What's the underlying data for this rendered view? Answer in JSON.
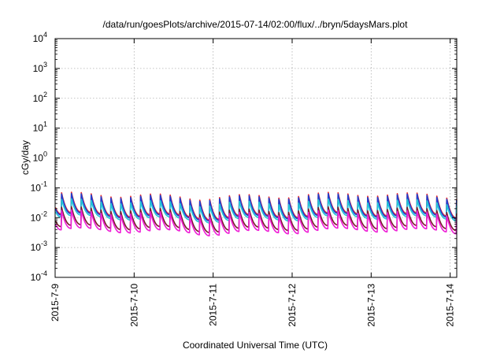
{
  "chart_data": {
    "type": "line",
    "title": "/data/run/goesPlots/archive/2015-07-14/02:00/flux/../bryn/5daysMars.plot",
    "xlabel": "Coordinated Universal Time (UTC)",
    "ylabel": "cGy/day",
    "y_scale": "log",
    "ylim_exponent": [
      -4,
      4
    ],
    "y_ticks": [
      {
        "base": "10",
        "exp": "-4"
      },
      {
        "base": "10",
        "exp": "-3"
      },
      {
        "base": "10",
        "exp": "-2"
      },
      {
        "base": "10",
        "exp": "-1"
      },
      {
        "base": "10",
        "exp": "0"
      },
      {
        "base": "10",
        "exp": "1"
      },
      {
        "base": "10",
        "exp": "2"
      },
      {
        "base": "10",
        "exp": "3"
      },
      {
        "base": "10",
        "exp": "4"
      }
    ],
    "x_start": "2015-07-09",
    "x_end": "2015-07-14 02:00",
    "x_ticks": [
      "2015-7-9",
      "2015-7-10",
      "2015-7-11",
      "2015-7-12",
      "2015-7-13",
      "2015-7-14"
    ],
    "grid": true,
    "legend": "none",
    "periodic_pattern": {
      "period_hours": 3,
      "description": "sawtooth: sharp spike every 3 hours followed by decay"
    },
    "series": [
      {
        "color": "#e8262a",
        "peak": 0.055,
        "floor": 0.012
      },
      {
        "color": "#1f3fcf",
        "peak": 0.05,
        "floor": 0.011
      },
      {
        "color": "#22c5d6",
        "peak": 0.033,
        "floor": 0.0095
      },
      {
        "color": "#7a1a2a",
        "peak": 0.018,
        "floor": 0.0045
      },
      {
        "color": "#ee1fd6",
        "peak": 0.014,
        "floor": 0.0035
      }
    ]
  }
}
